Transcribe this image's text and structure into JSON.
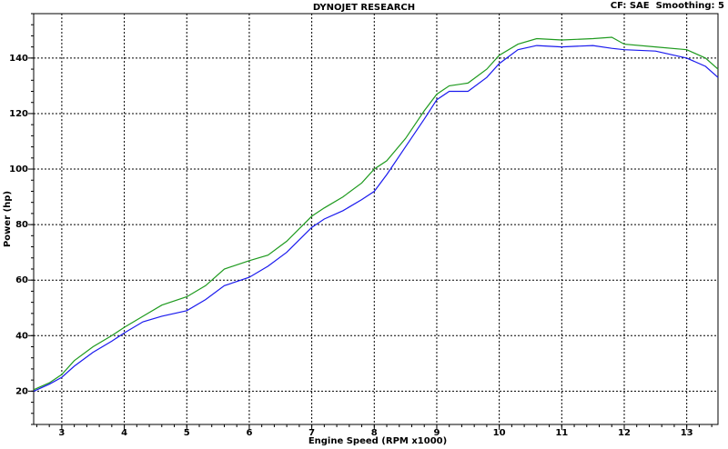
{
  "chart_data": {
    "type": "line",
    "title": "DYNOJET RESEARCH",
    "subtitle": "CF: SAE  Smoothing: 5",
    "x_label": "Engine Speed (RPM x1000)",
    "y_label": "Power (hp)",
    "x": [
      2.55,
      2.8,
      3.0,
      3.2,
      3.5,
      3.8,
      4.0,
      4.3,
      4.6,
      5.0,
      5.3,
      5.6,
      6.0,
      6.3,
      6.6,
      7.0,
      7.2,
      7.5,
      7.8,
      8.0,
      8.2,
      8.5,
      8.8,
      9.0,
      9.2,
      9.5,
      9.8,
      10.0,
      10.3,
      10.6,
      11.0,
      11.5,
      11.8,
      12.0,
      12.5,
      13.0,
      13.3,
      13.5
    ],
    "series": [
      {
        "color": "#1e9a1e",
        "values": [
          20.5,
          23,
          26,
          31,
          36,
          40,
          43,
          47,
          51,
          54,
          58,
          64,
          67,
          69,
          74,
          83,
          86,
          90,
          95,
          100,
          103,
          111,
          121,
          127,
          130,
          131,
          136,
          141,
          145,
          147,
          146.5,
          147,
          147.5,
          145,
          144,
          143,
          140,
          136
        ]
      },
      {
        "color": "#1a1aee",
        "values": [
          20,
          22.5,
          25,
          29,
          34,
          38,
          41,
          45,
          47,
          49,
          53,
          58,
          61,
          65,
          70,
          79,
          82,
          85,
          89,
          92,
          98,
          108,
          118,
          125,
          128,
          128,
          133,
          138,
          143,
          144.5,
          144,
          144.5,
          143.5,
          143,
          142.5,
          140,
          137,
          133
        ]
      }
    ],
    "xlim": [
      2.55,
      13.5
    ],
    "ylim": [
      8,
      156
    ],
    "xticks": [
      3,
      4,
      5,
      6,
      7,
      8,
      9,
      10,
      11,
      12,
      13
    ],
    "yticks": [
      20,
      40,
      60,
      80,
      100,
      120,
      140
    ],
    "grid": true
  }
}
